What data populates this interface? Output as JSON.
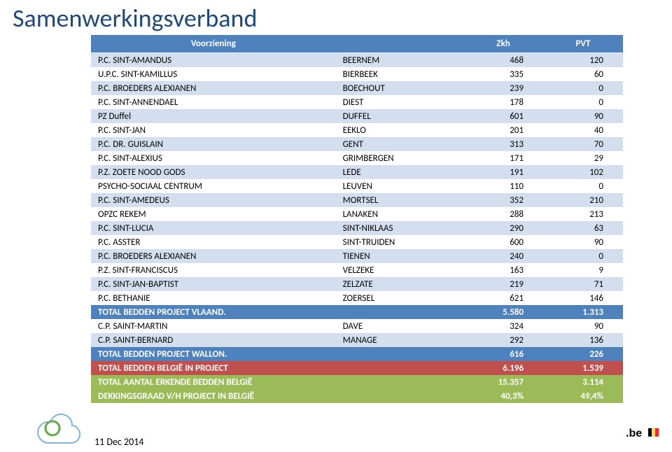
{
  "title": "Samenwerkingsverband",
  "header": {
    "col1": "Voorziening",
    "col2": "",
    "col3": "Zkh",
    "col4": "PVT"
  },
  "rows": [
    {
      "name": "P.C. SINT-AMANDUS",
      "loc": "BEERNEM",
      "zkh": "468",
      "pvt": "120"
    },
    {
      "name": "U.P.C. SINT-KAMILLUS",
      "loc": "BIERBEEK",
      "zkh": "335",
      "pvt": "60"
    },
    {
      "name": "P.C. BROEDERS ALEXIANEN",
      "loc": "BOECHOUT",
      "zkh": "239",
      "pvt": "0"
    },
    {
      "name": "P.C. SINT-ANNENDAEL",
      "loc": "DIEST",
      "zkh": "178",
      "pvt": "0"
    },
    {
      "name": "PZ Duffel",
      "loc": "DUFFEL",
      "zkh": "601",
      "pvt": "90"
    },
    {
      "name": "P.C. SINT-JAN",
      "loc": "EEKLO",
      "zkh": "201",
      "pvt": "40"
    },
    {
      "name": "P.C. DR. GUISLAIN",
      "loc": "GENT",
      "zkh": "313",
      "pvt": "70"
    },
    {
      "name": "P.C. SINT-ALEXIUS",
      "loc": "GRIMBERGEN",
      "zkh": "171",
      "pvt": "29"
    },
    {
      "name": "P.Z. ZOETE NOOD GODS",
      "loc": "LEDE",
      "zkh": "191",
      "pvt": "102"
    },
    {
      "name": "PSYCHO-SOCIAAL CENTRUM",
      "loc": "LEUVEN",
      "zkh": "110",
      "pvt": "0"
    },
    {
      "name": "P.C. SINT-AMEDEUS",
      "loc": "MORTSEL",
      "zkh": "352",
      "pvt": "210"
    },
    {
      "name": "OPZC REKEM",
      "loc": "LANAKEN",
      "zkh": "288",
      "pvt": "213"
    },
    {
      "name": "P.C. SINT-LUCIA",
      "loc": "SINT-NIKLAAS",
      "zkh": "290",
      "pvt": "63"
    },
    {
      "name": "P.C. ASSTER",
      "loc": "SINT-TRUIDEN",
      "zkh": "600",
      "pvt": "90"
    },
    {
      "name": "P.C. BROEDERS ALEXIANEN",
      "loc": "TIENEN",
      "zkh": "240",
      "pvt": "0"
    },
    {
      "name": "P.Z. SINT-FRANCISCUS",
      "loc": "VELZEKE",
      "zkh": "163",
      "pvt": "9"
    },
    {
      "name": "P.C. SINT-JAN-BAPTIST",
      "loc": "ZELZATE",
      "zkh": "219",
      "pvt": "71"
    },
    {
      "name": "P.C. BETHANIE",
      "loc": "ZOERSEL",
      "zkh": "621",
      "pvt": "146"
    }
  ],
  "vlaand": {
    "label": "TOTAL BEDDEN PROJECT VLAAND.",
    "zkh": "5.580",
    "pvt": "1.313"
  },
  "cp_rows": [
    {
      "name": "C.P. SAINT-MARTIN",
      "loc": "DAVE",
      "zkh": "324",
      "pvt": "90"
    },
    {
      "name": "C.P. SAINT-BERNARD",
      "loc": "MANAGE",
      "zkh": "292",
      "pvt": "136"
    }
  ],
  "wallon": {
    "label": "TOTAL BEDDEN PROJECT WALLON.",
    "zkh": "616",
    "pvt": "226"
  },
  "proj": {
    "label": "TOTAL BEDDEN BELGIË IN PROJECT",
    "zkh": "6.196",
    "pvt": "1.539"
  },
  "total": {
    "label": "TOTAL AANTAL ERKENDE BEDDEN BELGIË",
    "zkh": "15.357",
    "pvt": "3.114"
  },
  "cov": {
    "label": "DEKKINGSGRAAD V/H PROJECT IN BELGIË",
    "zkh": "40,3%",
    "pvt": "49,4%"
  },
  "footer_date": "11 Dec 2014",
  "colors": {
    "header_bg": "#4f81bd",
    "row_alt_bg": "#d3dfee",
    "red_bg": "#c0504d",
    "green_bg": "#9bbb59",
    "title_color": "#1f497d"
  },
  "icons": {
    "cloud": "cloud-sync-icon",
    "be": "belgium-logo"
  }
}
